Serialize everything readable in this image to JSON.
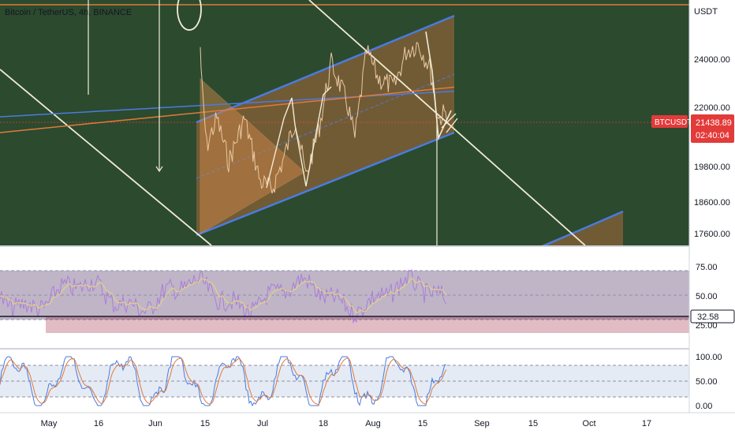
{
  "header": {
    "symbol": "Bitcoin / TetherUS, 4h, BINANCE",
    "currency": "USDT"
  },
  "price_tag": {
    "symbol": "BTCUSDT",
    "price": "21438.89",
    "countdown": "02:40:04"
  },
  "rsi_tag": {
    "value": "32.58"
  },
  "colors": {
    "price_pane_bg": "#2c4a2e",
    "channel_fill": "#c5703f",
    "channel_line": "#4a7be0",
    "trend_line": "#f1ecd4",
    "price_tag": "#e33a3a",
    "rsi_line": "#a97fd8",
    "rsi_band": "#4b2a5e",
    "stoch_k": "#4a7be0",
    "stoch_d": "#e07a3a"
  },
  "chart_data": [
    {
      "type": "line",
      "pane": "price",
      "title": "",
      "y_axis_ticks": [
        "24000.00",
        "22000.00",
        "19800.00",
        "18600.00",
        "17600.00"
      ],
      "x_axis_ticks": [
        "May",
        "16",
        "Jun",
        "15",
        "Jul",
        "18",
        "Aug",
        "15",
        "Sep",
        "15",
        "Oct",
        "17"
      ],
      "ylim": [
        17300,
        25200
      ],
      "last_price": 21438.89
    },
    {
      "type": "line",
      "pane": "rsi",
      "y_axis_ticks": [
        "75.00",
        "50.00",
        "25.00"
      ],
      "ylim": [
        15,
        85
      ],
      "last_value": 32.58
    },
    {
      "type": "line",
      "pane": "stochastic",
      "y_axis_ticks": [
        "100.00",
        "50.00",
        "0.00"
      ],
      "ylim": [
        -5,
        105
      ]
    }
  ]
}
